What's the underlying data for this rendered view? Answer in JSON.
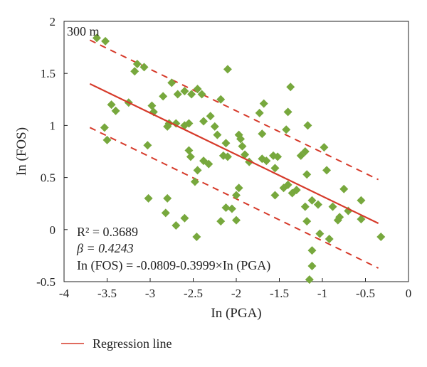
{
  "chart_data": {
    "type": "scatter",
    "xlabel": "In (PGA)",
    "ylabel": "In (FOS)",
    "xlim": [
      -4,
      0
    ],
    "ylim": [
      -0.5,
      2
    ],
    "xticks": [
      -4,
      -3.5,
      -3,
      -2.5,
      -2,
      -1.5,
      -1,
      -0.5,
      0
    ],
    "xtick_labels": [
      "-4",
      "-3.5",
      "-3",
      "-2.5",
      "-2",
      "-1.5",
      "-1",
      "-0.5",
      "0"
    ],
    "yticks": [
      -0.5,
      0,
      0.5,
      1,
      1.5,
      2
    ],
    "ytick_labels": [
      "-0.5",
      "0",
      "0.5",
      "1",
      "1.5",
      "2"
    ],
    "grid": false,
    "annotations": {
      "corner_label": "300 m",
      "r2": "R² = 0.3689",
      "beta": "β = 0.4243",
      "equation": "In (FOS) = -0.0809-0.3999×In (PGA)"
    },
    "legend": {
      "position": "bottom-left",
      "label": "Regression line"
    },
    "regression": {
      "x": [
        -3.7,
        -0.35
      ],
      "y": [
        1.4,
        0.06
      ],
      "band_upper": {
        "x": [
          -3.7,
          -0.35
        ],
        "y": [
          1.82,
          0.48
        ]
      },
      "band_lower": {
        "x": [
          -3.7,
          -0.35
        ],
        "y": [
          0.98,
          -0.37
        ]
      }
    },
    "colors": {
      "points": "#77a83d",
      "line": "#d63a2a"
    },
    "points": [
      [
        -3.62,
        1.84
      ],
      [
        -3.52,
        1.81
      ],
      [
        -3.15,
        1.59
      ],
      [
        -3.18,
        1.52
      ],
      [
        -3.07,
        1.56
      ],
      [
        -3.25,
        1.22
      ],
      [
        -3.45,
        1.2
      ],
      [
        -3.4,
        1.14
      ],
      [
        -3.53,
        0.98
      ],
      [
        -3.5,
        0.86
      ],
      [
        -3.03,
        0.81
      ],
      [
        -2.98,
        1.19
      ],
      [
        -2.96,
        1.13
      ],
      [
        -2.85,
        1.28
      ],
      [
        -2.75,
        1.41
      ],
      [
        -2.68,
        1.3
      ],
      [
        -2.6,
        1.33
      ],
      [
        -2.52,
        1.3
      ],
      [
        -2.45,
        1.35
      ],
      [
        -2.4,
        1.3
      ],
      [
        -2.8,
        0.99
      ],
      [
        -2.78,
        1.02
      ],
      [
        -2.7,
        1.02
      ],
      [
        -2.6,
        1.0
      ],
      [
        -2.55,
        1.02
      ],
      [
        -2.38,
        1.04
      ],
      [
        -2.3,
        1.09
      ],
      [
        -2.25,
        0.99
      ],
      [
        -2.22,
        0.91
      ],
      [
        -2.18,
        1.25
      ],
      [
        -2.55,
        0.76
      ],
      [
        -2.53,
        0.7
      ],
      [
        -2.45,
        0.57
      ],
      [
        -2.38,
        0.66
      ],
      [
        -2.32,
        0.63
      ],
      [
        -2.48,
        0.46
      ],
      [
        -2.6,
        0.11
      ],
      [
        -2.46,
        -0.07
      ],
      [
        -2.7,
        0.04
      ],
      [
        -2.82,
        0.16
      ],
      [
        -2.8,
        0.3
      ],
      [
        -3.02,
        0.3
      ],
      [
        -2.12,
        0.83
      ],
      [
        -2.1,
        0.7
      ],
      [
        -2.15,
        0.71
      ],
      [
        -2.1,
        1.54
      ],
      [
        -1.97,
        0.91
      ],
      [
        -1.95,
        0.87
      ],
      [
        -1.93,
        0.8
      ],
      [
        -1.9,
        0.72
      ],
      [
        -1.85,
        0.65
      ],
      [
        -1.97,
        0.4
      ],
      [
        -2.0,
        0.33
      ],
      [
        -2.05,
        0.2
      ],
      [
        -2.12,
        0.21
      ],
      [
        -2.0,
        0.09
      ],
      [
        -2.18,
        0.08
      ],
      [
        -1.73,
        1.12
      ],
      [
        -1.68,
        1.21
      ],
      [
        -1.7,
        0.92
      ],
      [
        -1.7,
        0.68
      ],
      [
        -1.65,
        0.66
      ],
      [
        -1.57,
        0.71
      ],
      [
        -1.55,
        0.59
      ],
      [
        -1.52,
        0.7
      ],
      [
        -1.55,
        0.33
      ],
      [
        -1.45,
        0.4
      ],
      [
        -1.4,
        0.43
      ],
      [
        -1.42,
        0.96
      ],
      [
        -1.4,
        1.13
      ],
      [
        -1.37,
        1.37
      ],
      [
        -1.35,
        0.35
      ],
      [
        -1.3,
        0.38
      ],
      [
        -1.25,
        0.71
      ],
      [
        -1.2,
        0.75
      ],
      [
        -1.18,
        0.53
      ],
      [
        -1.17,
        1.0
      ],
      [
        -1.2,
        0.22
      ],
      [
        -1.18,
        0.08
      ],
      [
        -1.12,
        0.28
      ],
      [
        -1.05,
        0.24
      ],
      [
        -1.03,
        -0.04
      ],
      [
        -1.12,
        -0.2
      ],
      [
        -1.12,
        -0.35
      ],
      [
        -1.15,
        -0.48
      ],
      [
        -0.98,
        0.79
      ],
      [
        -0.95,
        0.57
      ],
      [
        -0.92,
        -0.09
      ],
      [
        -0.88,
        0.22
      ],
      [
        -0.82,
        0.09
      ],
      [
        -0.8,
        0.12
      ],
      [
        -0.75,
        0.39
      ],
      [
        -0.7,
        0.18
      ],
      [
        -0.55,
        0.28
      ],
      [
        -0.55,
        0.1
      ],
      [
        -0.32,
        -0.07
      ]
    ]
  }
}
